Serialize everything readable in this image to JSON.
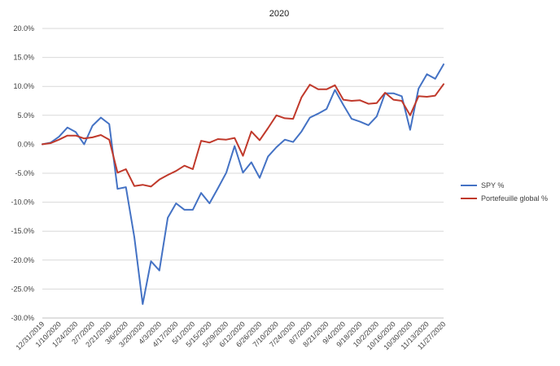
{
  "chart_data": {
    "type": "line",
    "title": "2020",
    "xlabel": "",
    "ylabel": "",
    "ylim": [
      -0.3,
      0.2
    ],
    "y_ticks": [
      0.2,
      0.15,
      0.1,
      0.05,
      0.0,
      -0.05,
      -0.1,
      -0.15,
      -0.2,
      -0.25,
      -0.3
    ],
    "y_tick_labels": [
      "20.0%",
      "15.0%",
      "10.0%",
      "5.0%",
      "0.0%",
      "-5.0%",
      "-10.0%",
      "-15.0%",
      "-20.0%",
      "-25.0%",
      "-30.0%"
    ],
    "x_tick_labels": [
      "12/31/2019",
      "1/10/2020",
      "1/24/2020",
      "2/7/2020",
      "2/21/2020",
      "3/6/2020",
      "3/20/2020",
      "4/3/2020",
      "4/17/2020",
      "5/1/2020",
      "5/15/2020",
      "5/29/2020",
      "6/12/2020",
      "6/26/2020",
      "7/10/2020",
      "7/24/2020",
      "8/7/2020",
      "8/21/2020",
      "9/4/2020",
      "9/18/2020",
      "10/2/2020",
      "10/16/2020",
      "10/30/2020",
      "11/13/2020",
      "11/27/2020"
    ],
    "x_tick_index": [
      0,
      2,
      4,
      6,
      8,
      10,
      12,
      14,
      16,
      18,
      20,
      22,
      24,
      26,
      28,
      30,
      32,
      34,
      36,
      38,
      40,
      42,
      44,
      46,
      48
    ],
    "grid": true,
    "legend_position": "right",
    "series": [
      {
        "name": "SPY %",
        "color": "#4472C4",
        "values": [
          0.0,
          0.003,
          0.013,
          0.029,
          0.021,
          0.0,
          0.032,
          0.046,
          0.035,
          -0.077,
          -0.074,
          -0.16,
          -0.276,
          -0.202,
          -0.218,
          -0.127,
          -0.102,
          -0.113,
          -0.113,
          -0.084,
          -0.102,
          -0.076,
          -0.049,
          -0.003,
          -0.049,
          -0.031,
          -0.058,
          -0.021,
          -0.005,
          0.008,
          0.004,
          0.022,
          0.046,
          0.053,
          0.061,
          0.094,
          0.068,
          0.044,
          0.039,
          0.033,
          0.048,
          0.088,
          0.088,
          0.083,
          0.025,
          0.096,
          0.121,
          0.113,
          0.138
        ]
      },
      {
        "name": "Portefeuille global %",
        "color": "#C0392B",
        "values": [
          0.0,
          0.002,
          0.008,
          0.015,
          0.015,
          0.01,
          0.012,
          0.016,
          0.008,
          -0.049,
          -0.043,
          -0.072,
          -0.07,
          -0.073,
          -0.061,
          -0.053,
          -0.046,
          -0.037,
          -0.043,
          0.006,
          0.003,
          0.009,
          0.008,
          0.011,
          -0.02,
          0.022,
          0.007,
          0.028,
          0.05,
          0.045,
          0.044,
          0.081,
          0.103,
          0.095,
          0.095,
          0.102,
          0.077,
          0.075,
          0.076,
          0.07,
          0.071,
          0.089,
          0.077,
          0.075,
          0.05,
          0.083,
          0.082,
          0.084,
          0.104
        ]
      }
    ]
  }
}
